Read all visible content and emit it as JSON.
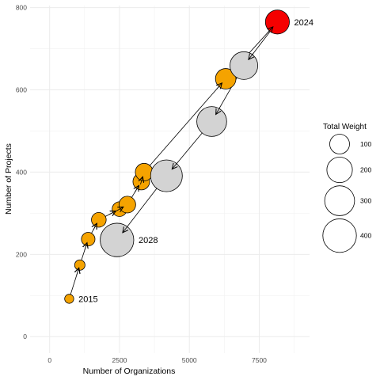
{
  "chart_data": {
    "type": "scatter",
    "xlabel": "Number of Organizations",
    "ylabel": "Number of Projects",
    "xlim": [
      -700,
      9300
    ],
    "ylim": [
      -40,
      805
    ],
    "x_ticks": [
      0,
      2500,
      5000,
      7500
    ],
    "x_tick_labels": [
      "0",
      "2500",
      "5000",
      "7500"
    ],
    "y_ticks": [
      0,
      200,
      400,
      600,
      800
    ],
    "y_tick_labels": [
      "0",
      "200",
      "400",
      "600",
      "800"
    ],
    "grid": true,
    "points": [
      {
        "x": 700,
        "y": 92,
        "weight": 5,
        "color": "#F5A300",
        "label": "2015"
      },
      {
        "x": 1080,
        "y": 174,
        "weight": 10,
        "color": "#F5A300",
        "label": ""
      },
      {
        "x": 1380,
        "y": 237,
        "weight": 30,
        "color": "#F5A300",
        "label": ""
      },
      {
        "x": 1760,
        "y": 284,
        "weight": 40,
        "color": "#F5A300",
        "label": ""
      },
      {
        "x": 2500,
        "y": 310,
        "weight": 40,
        "color": "#F5A300",
        "label": ""
      },
      {
        "x": 2780,
        "y": 321,
        "weight": 60,
        "color": "#F5A300",
        "label": ""
      },
      {
        "x": 3280,
        "y": 377,
        "weight": 60,
        "color": "#F5A300",
        "label": ""
      },
      {
        "x": 3380,
        "y": 400,
        "weight": 70,
        "color": "#F5A300",
        "label": ""
      },
      {
        "x": 6300,
        "y": 627,
        "weight": 110,
        "color": "#F5A300",
        "label": ""
      },
      {
        "x": 8150,
        "y": 765,
        "weight": 170,
        "color": "#F50000",
        "label": "2024"
      },
      {
        "x": 6950,
        "y": 659,
        "weight": 250,
        "color": "#D3D3D3",
        "label": ""
      },
      {
        "x": 5800,
        "y": 523,
        "weight": 300,
        "color": "#D3D3D3",
        "label": ""
      },
      {
        "x": 4180,
        "y": 391,
        "weight": 350,
        "color": "#D3D3D3",
        "label": ""
      },
      {
        "x": 2410,
        "y": 235,
        "weight": 400,
        "color": "#D3D3D3",
        "label": "2028"
      }
    ],
    "legend": {
      "title": "Total Weight",
      "placement": "right",
      "sizes": [
        100,
        200,
        300,
        400
      ],
      "labels": [
        "100",
        "200",
        "300",
        "400"
      ]
    }
  }
}
